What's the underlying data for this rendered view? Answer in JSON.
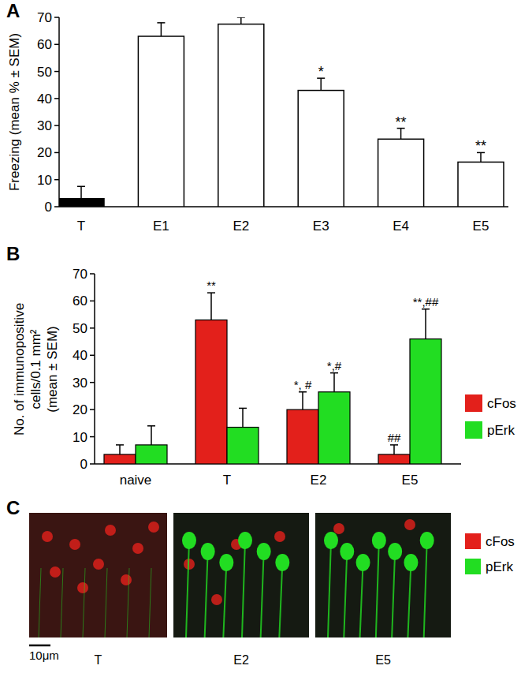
{
  "chart_data": [
    {
      "type": "bar",
      "title": "A",
      "y_label": "Freezing (mean % ± SEM)",
      "categories": [
        "T",
        "E1",
        "E2",
        "E3",
        "E4",
        "E5"
      ],
      "values": [
        3,
        63,
        67.5,
        43,
        25,
        16.5
      ],
      "errors": [
        4.5,
        5,
        2.5,
        4.5,
        4,
        3.5
      ],
      "colors": [
        "#000000",
        "#ffffff",
        "#ffffff",
        "#ffffff",
        "#ffffff",
        "#ffffff"
      ],
      "significance": [
        null,
        null,
        null,
        "*",
        "**",
        "**"
      ],
      "ylim": [
        0,
        70
      ],
      "yticks": [
        0,
        10,
        20,
        30,
        40,
        50,
        60,
        70
      ],
      "grid": false
    },
    {
      "type": "bar",
      "title": "B",
      "y_label": [
        "No. of immunopositive",
        "cells/0.1 mm²",
        "(mean ± SEM)"
      ],
      "categories": [
        "naive",
        "T",
        "E2",
        "E5"
      ],
      "series": [
        {
          "name": "cFos",
          "color": "#e3201b",
          "values": [
            3.5,
            53,
            20,
            3.5
          ],
          "errors": [
            3.5,
            10,
            6.5,
            3.5
          ],
          "significance": [
            null,
            "**",
            "*, #",
            "##"
          ]
        },
        {
          "name": "pErk",
          "color": "#22dd22",
          "values": [
            7,
            13.5,
            26.5,
            46
          ],
          "errors": [
            7,
            7,
            7,
            11
          ],
          "significance": [
            null,
            null,
            "*,#",
            "**,##"
          ]
        }
      ],
      "ylim": [
        0,
        70
      ],
      "yticks": [
        0,
        10,
        20,
        30,
        40,
        50,
        60,
        70
      ],
      "grid": false,
      "legend": "right"
    }
  ],
  "micrographs": {
    "title": "C",
    "panels": [
      "T",
      "E2",
      "E5"
    ],
    "legend": [
      {
        "name": "cFos",
        "color": "#e3201b"
      },
      {
        "name": "pErk",
        "color": "#22dd22"
      }
    ],
    "scale_bar": "10μm"
  }
}
